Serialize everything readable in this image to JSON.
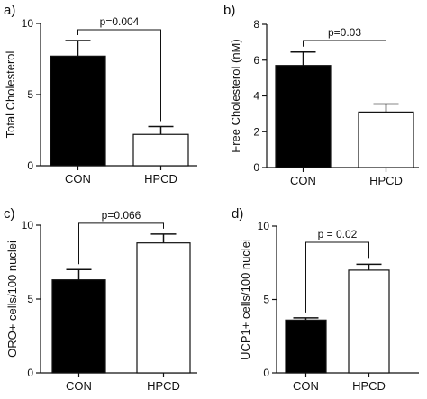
{
  "chart_data": [
    {
      "panel": "a)",
      "type": "bar",
      "ylabel": "Total Cholesterol",
      "ylim": [
        0,
        10
      ],
      "yticks": [
        0,
        5,
        10
      ],
      "categories": [
        "CON",
        "HPCD"
      ],
      "values": [
        7.7,
        2.2
      ],
      "errors": [
        1.1,
        0.55
      ],
      "fills": [
        "#000000",
        "#ffffff"
      ],
      "p_label": "p=0.004"
    },
    {
      "panel": "b)",
      "type": "bar",
      "ylabel": "Free Cholesterol (nM)",
      "ylim": [
        0,
        8
      ],
      "yticks": [
        0,
        2,
        4,
        6,
        8
      ],
      "categories": [
        "CON",
        "HPCD"
      ],
      "values": [
        5.7,
        3.1
      ],
      "errors": [
        0.75,
        0.45
      ],
      "fills": [
        "#000000",
        "#ffffff"
      ],
      "p_label": "p=0.03"
    },
    {
      "panel": "c)",
      "type": "bar",
      "ylabel": "ORO+ cells/100 nuclei",
      "ylim": [
        0,
        10
      ],
      "yticks": [
        0,
        5,
        10
      ],
      "categories": [
        "CON",
        "HPCD"
      ],
      "values": [
        6.3,
        8.8
      ],
      "errors": [
        0.7,
        0.6
      ],
      "fills": [
        "#000000",
        "#ffffff"
      ],
      "p_label": "p=0.066"
    },
    {
      "panel": "d)",
      "type": "bar",
      "ylabel": "UCP1+ cells/100 nuclei",
      "ylim": [
        0,
        10
      ],
      "yticks": [
        0,
        5,
        10
      ],
      "categories": [
        "CON",
        "HPCD"
      ],
      "values": [
        3.6,
        7.0
      ],
      "errors": [
        0.15,
        0.4
      ],
      "fills": [
        "#000000",
        "#ffffff"
      ],
      "p_label": "p = 0.02"
    }
  ]
}
